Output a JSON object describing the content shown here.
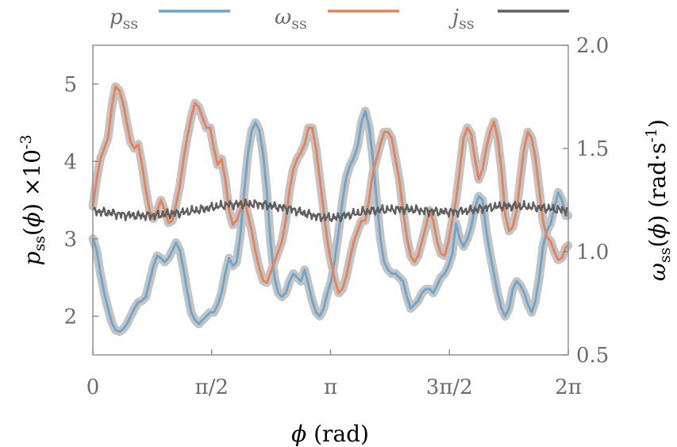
{
  "chart_data": {
    "type": "line",
    "xlabel": "ϕ (rad)",
    "ylabel_left": "p_ss(ϕ) ×10^-3",
    "ylabel_right": "ω_ss(ϕ) (rad·s^-1)",
    "xlim": [
      0,
      6.2832
    ],
    "ylim_left": [
      1.5,
      5.5
    ],
    "ylim_right": [
      0.5,
      2.0
    ],
    "x_ticks": [
      {
        "value": 0,
        "label": "0"
      },
      {
        "value": 1.5708,
        "label": "π/2"
      },
      {
        "value": 3.1416,
        "label": "π"
      },
      {
        "value": 4.7124,
        "label": "3π/2"
      },
      {
        "value": 6.2832,
        "label": "2π"
      }
    ],
    "y_ticks_left": [
      {
        "value": 2,
        "label": "2"
      },
      {
        "value": 3,
        "label": "3"
      },
      {
        "value": 4,
        "label": "4"
      },
      {
        "value": 5,
        "label": "5"
      }
    ],
    "y_ticks_right": [
      {
        "value": 0.5,
        "label": "0.5"
      },
      {
        "value": 1.0,
        "label": "1.0"
      },
      {
        "value": 1.5,
        "label": "1.5"
      },
      {
        "value": 2.0,
        "label": "2.0"
      }
    ],
    "legend": {
      "position": "top",
      "entries": [
        {
          "main": "p",
          "sub": "ss",
          "color": "#6fa6cf"
        },
        {
          "main": "ω",
          "sub": "ss",
          "color": "#e7835a"
        },
        {
          "main": "j",
          "sub": "ss",
          "color": "#5f5f5f"
        }
      ]
    },
    "band_color": "#c4c4c4",
    "series": [
      {
        "name": "p_ss",
        "axis": "left",
        "color": "#6fa6cf",
        "x": [
          0.0,
          0.05,
          0.1,
          0.15,
          0.2,
          0.25,
          0.3,
          0.35,
          0.4,
          0.45,
          0.5,
          0.55,
          0.6,
          0.65,
          0.7,
          0.75,
          0.8,
          0.85,
          0.9,
          0.95,
          1.0,
          1.05,
          1.1,
          1.15,
          1.2,
          1.25,
          1.3,
          1.35,
          1.4,
          1.45,
          1.5,
          1.55,
          1.6,
          1.65,
          1.7,
          1.75,
          1.8,
          1.85,
          1.9,
          1.95,
          2.0,
          2.05,
          2.1,
          2.15,
          2.2,
          2.25,
          2.3,
          2.35,
          2.4,
          2.45,
          2.5,
          2.55,
          2.6,
          2.65,
          2.7,
          2.75,
          2.8,
          2.85,
          2.9,
          2.95,
          3.0,
          3.05,
          3.1,
          3.15,
          3.2,
          3.25,
          3.3,
          3.35,
          3.4,
          3.45,
          3.5,
          3.55,
          3.6,
          3.65,
          3.7,
          3.75,
          3.8,
          3.85,
          3.9,
          3.95,
          4.0,
          4.05,
          4.1,
          4.15,
          4.2,
          4.25,
          4.3,
          4.35,
          4.4,
          4.45,
          4.5,
          4.55,
          4.6,
          4.65,
          4.7,
          4.75,
          4.8,
          4.85,
          4.9,
          4.95,
          5.0,
          5.05,
          5.1,
          5.15,
          5.2,
          5.25,
          5.3,
          5.35,
          5.4,
          5.45,
          5.5,
          5.55,
          5.6,
          5.65,
          5.7,
          5.75,
          5.8,
          5.85,
          5.9,
          5.95,
          6.0,
          6.05,
          6.1,
          6.15,
          6.2,
          6.25,
          6.28
        ],
        "values": [
          3.0,
          2.85,
          2.55,
          2.3,
          2.1,
          1.92,
          1.82,
          1.8,
          1.83,
          1.9,
          2.0,
          2.1,
          2.18,
          2.2,
          2.25,
          2.45,
          2.65,
          2.78,
          2.75,
          2.7,
          2.75,
          2.85,
          2.95,
          2.85,
          2.6,
          2.3,
          2.05,
          1.95,
          1.9,
          1.95,
          2.0,
          2.05,
          2.05,
          2.15,
          2.3,
          2.55,
          2.75,
          2.65,
          2.7,
          3.05,
          3.6,
          4.1,
          4.4,
          4.5,
          4.4,
          4.1,
          3.6,
          2.95,
          2.5,
          2.3,
          2.25,
          2.3,
          2.45,
          2.55,
          2.5,
          2.45,
          2.6,
          2.4,
          2.2,
          2.05,
          2.0,
          2.1,
          2.3,
          2.45,
          2.75,
          3.1,
          3.5,
          3.8,
          3.95,
          4.05,
          4.2,
          4.5,
          4.65,
          4.45,
          4.05,
          3.5,
          3.0,
          2.7,
          2.6,
          2.55,
          2.55,
          2.5,
          2.45,
          2.25,
          2.1,
          2.15,
          2.2,
          2.3,
          2.35,
          2.35,
          2.3,
          2.4,
          2.5,
          2.55,
          2.65,
          2.8,
          3.2,
          3.0,
          2.9,
          3.0,
          3.15,
          3.4,
          3.55,
          3.5,
          3.1,
          2.8,
          2.55,
          2.3,
          2.1,
          2.0,
          2.1,
          2.35,
          2.45,
          2.4,
          2.3,
          2.15,
          2.05,
          2.2,
          2.5,
          2.9,
          3.1,
          3.2,
          3.4,
          3.6,
          3.5,
          3.3,
          3.3
        ]
      },
      {
        "name": "ω_ss",
        "axis": "right",
        "color": "#e7835a",
        "x": [
          0.0,
          0.05,
          0.1,
          0.15,
          0.2,
          0.25,
          0.3,
          0.35,
          0.4,
          0.45,
          0.5,
          0.55,
          0.6,
          0.65,
          0.7,
          0.75,
          0.8,
          0.85,
          0.9,
          0.95,
          1.0,
          1.05,
          1.1,
          1.15,
          1.2,
          1.25,
          1.3,
          1.35,
          1.4,
          1.45,
          1.5,
          1.55,
          1.6,
          1.65,
          1.7,
          1.75,
          1.8,
          1.85,
          1.9,
          1.95,
          2.0,
          2.05,
          2.1,
          2.15,
          2.2,
          2.25,
          2.3,
          2.35,
          2.4,
          2.45,
          2.5,
          2.55,
          2.6,
          2.65,
          2.7,
          2.75,
          2.8,
          2.85,
          2.9,
          2.95,
          3.0,
          3.05,
          3.1,
          3.15,
          3.2,
          3.25,
          3.3,
          3.35,
          3.4,
          3.45,
          3.5,
          3.55,
          3.6,
          3.65,
          3.7,
          3.75,
          3.8,
          3.85,
          3.9,
          3.95,
          4.0,
          4.05,
          4.1,
          4.15,
          4.2,
          4.25,
          4.3,
          4.35,
          4.4,
          4.45,
          4.5,
          4.55,
          4.6,
          4.65,
          4.7,
          4.75,
          4.8,
          4.85,
          4.9,
          4.95,
          5.0,
          5.05,
          5.1,
          5.15,
          5.2,
          5.25,
          5.3,
          5.35,
          5.4,
          5.45,
          5.5,
          5.55,
          5.6,
          5.65,
          5.7,
          5.75,
          5.8,
          5.85,
          5.9,
          5.95,
          6.0,
          6.05,
          6.1,
          6.15,
          6.2,
          6.25,
          6.28
        ],
        "values": [
          1.22,
          1.35,
          1.45,
          1.5,
          1.55,
          1.7,
          1.8,
          1.78,
          1.72,
          1.62,
          1.53,
          1.5,
          1.52,
          1.42,
          1.3,
          1.2,
          1.16,
          1.2,
          1.25,
          1.2,
          1.14,
          1.15,
          1.23,
          1.32,
          1.45,
          1.56,
          1.65,
          1.72,
          1.7,
          1.65,
          1.6,
          1.6,
          1.5,
          1.42,
          1.45,
          1.35,
          1.2,
          1.13,
          1.15,
          1.2,
          1.25,
          1.18,
          1.1,
          1.0,
          0.92,
          0.86,
          0.85,
          0.9,
          0.95,
          1.0,
          1.05,
          1.15,
          1.3,
          1.4,
          1.45,
          1.48,
          1.52,
          1.6,
          1.6,
          1.5,
          1.35,
          1.2,
          1.05,
          0.95,
          0.86,
          0.8,
          0.82,
          0.88,
          0.97,
          1.05,
          1.1,
          1.15,
          1.15,
          1.25,
          1.38,
          1.45,
          1.52,
          1.58,
          1.58,
          1.55,
          1.45,
          1.35,
          1.2,
          1.07,
          0.98,
          0.95,
          0.98,
          1.05,
          1.12,
          1.2,
          1.15,
          1.05,
          0.99,
          0.98,
          1.05,
          1.15,
          1.25,
          1.4,
          1.55,
          1.6,
          1.57,
          1.45,
          1.35,
          1.4,
          1.5,
          1.58,
          1.63,
          1.55,
          1.4,
          1.18,
          1.1,
          1.12,
          1.2,
          1.35,
          1.5,
          1.58,
          1.55,
          1.45,
          1.3,
          1.15,
          1.07,
          1.05,
          1.0,
          0.96,
          0.97,
          1.02,
          1.03
        ]
      },
      {
        "name": "j_ss",
        "axis": "left",
        "color": "#5f5f5f",
        "x": [
          0.0,
          0.2,
          0.4,
          0.6,
          0.8,
          1.0,
          1.2,
          1.4,
          1.6,
          1.8,
          2.0,
          2.2,
          2.4,
          2.6,
          2.8,
          3.0,
          3.2,
          3.4,
          3.6,
          3.8,
          4.0,
          4.2,
          4.4,
          4.6,
          4.8,
          5.0,
          5.2,
          5.4,
          5.6,
          5.8,
          6.0,
          6.2,
          6.28
        ],
        "values": [
          3.36,
          3.34,
          3.31,
          3.3,
          3.3,
          3.32,
          3.34,
          3.37,
          3.41,
          3.44,
          3.45,
          3.45,
          3.42,
          3.39,
          3.33,
          3.28,
          3.27,
          3.31,
          3.35,
          3.37,
          3.38,
          3.38,
          3.36,
          3.35,
          3.35,
          3.37,
          3.4,
          3.42,
          3.42,
          3.41,
          3.39,
          3.37,
          3.37
        ]
      }
    ]
  }
}
